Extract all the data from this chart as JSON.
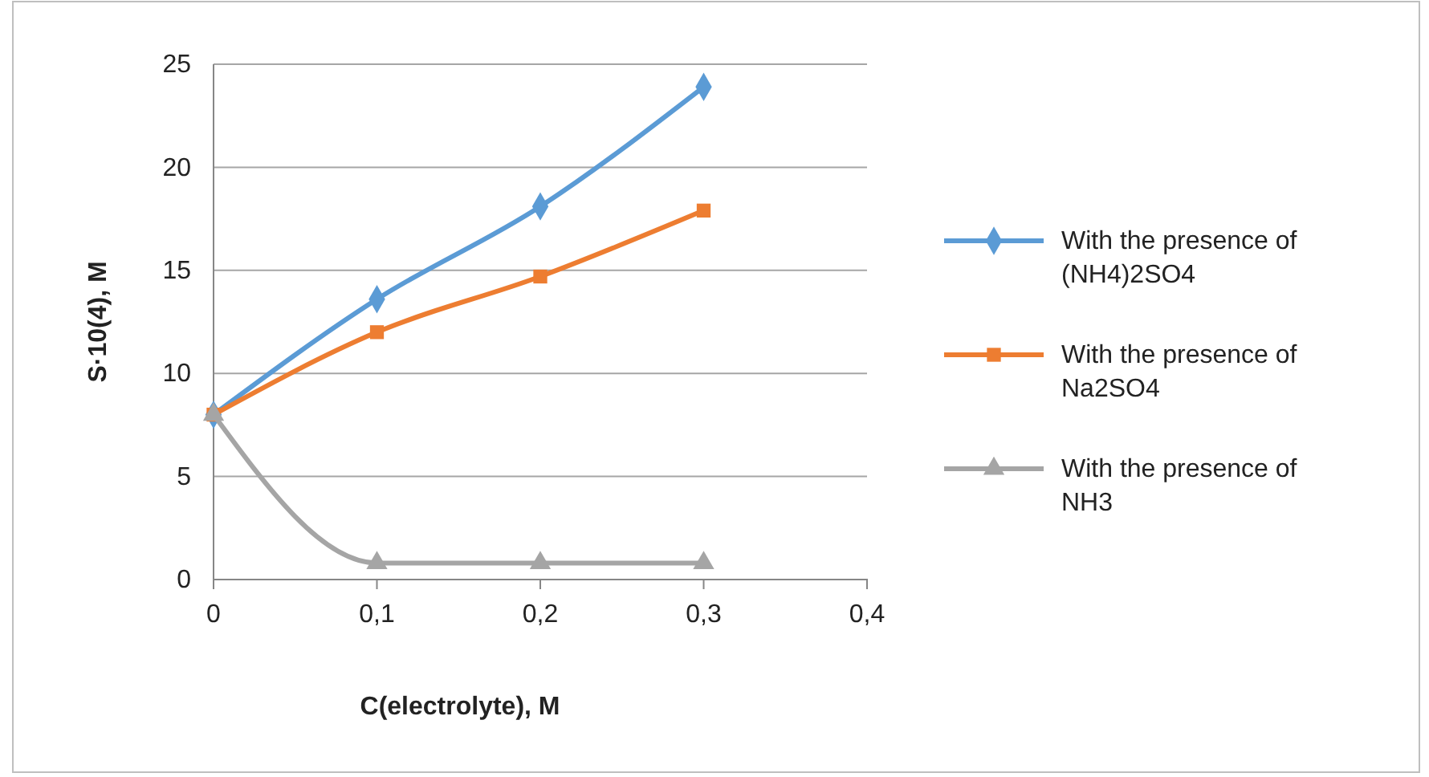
{
  "chart_data": {
    "type": "line",
    "xlabel": "C(electrolyte), M",
    "ylabel": "S·10(4), M",
    "x": [
      0,
      0.1,
      0.2,
      0.3
    ],
    "series": [
      {
        "name": "With the presence of (NH4)2SO4",
        "color": "#5b9bd5",
        "marker": "diamond",
        "values": [
          8,
          13.6,
          18.1,
          23.9
        ]
      },
      {
        "name": "With the presence of Na2SO4",
        "color": "#ed7d31",
        "marker": "square",
        "values": [
          8,
          12,
          14.7,
          17.9
        ]
      },
      {
        "name": "With the presence of NH3",
        "color": "#a5a5a5",
        "marker": "triangle",
        "values": [
          8,
          0.8,
          0.8,
          0.8
        ]
      }
    ],
    "xlim": [
      0,
      0.4
    ],
    "xticks": [
      0,
      {
        "value": 0.1,
        "label": "0,1"
      },
      {
        "value": 0.2,
        "label": "0,2"
      },
      {
        "value": 0.3,
        "label": "0,3"
      },
      {
        "value": 0.4,
        "label": "0,4"
      }
    ],
    "ylim": [
      0,
      25
    ],
    "yticks": [
      0,
      5,
      10,
      15,
      20,
      25
    ],
    "grid": "y",
    "legend": "right"
  }
}
